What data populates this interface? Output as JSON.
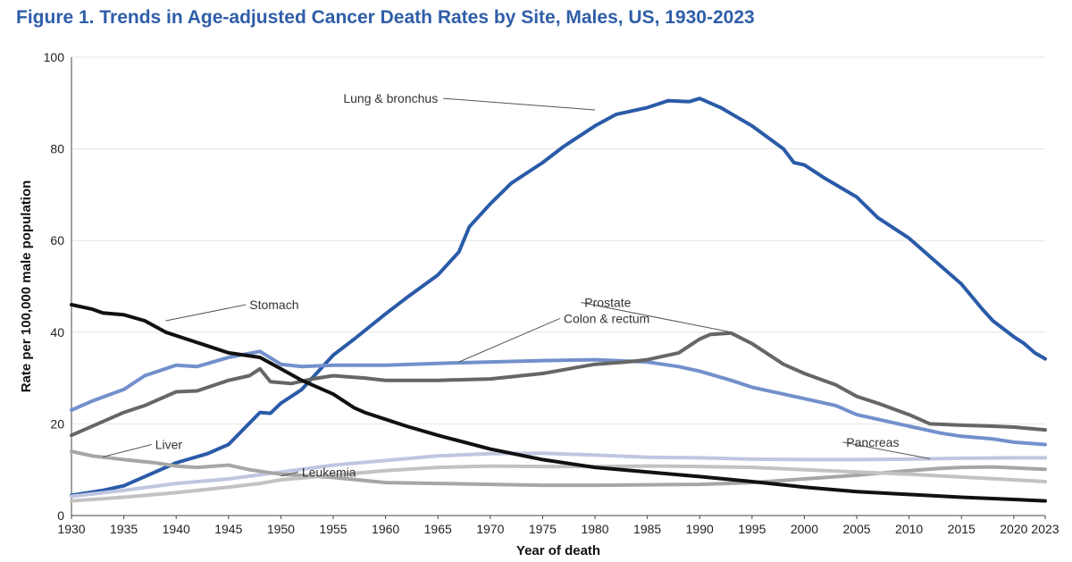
{
  "title": "Figure 1. Trends in Age-adjusted Cancer Death Rates by Site, Males, US, 1930-2023",
  "chart_data": {
    "type": "line",
    "xlabel": "Year of death",
    "ylabel": "Rate per 100,000 male population",
    "xlim": [
      1930,
      2023
    ],
    "ylim": [
      0,
      100
    ],
    "xticks": [
      1930,
      1935,
      1940,
      1945,
      1950,
      1955,
      1960,
      1965,
      1970,
      1975,
      1980,
      1985,
      1990,
      1995,
      2000,
      2005,
      2010,
      2015,
      2020,
      2023
    ],
    "yticks": [
      0,
      20,
      40,
      60,
      80,
      100
    ],
    "grid": "horizontal",
    "series": [
      {
        "name": "Lung & bronchus",
        "color": "#2a5ba8",
        "width": 4,
        "points": [
          [
            1930,
            4.4
          ],
          [
            1933,
            5.5
          ],
          [
            1935,
            6.5
          ],
          [
            1937,
            8.5
          ],
          [
            1940,
            11.5
          ],
          [
            1943,
            13.5
          ],
          [
            1945,
            15.5
          ],
          [
            1948,
            22.5
          ],
          [
            1949,
            22.3
          ],
          [
            1950,
            24.5
          ],
          [
            1952,
            27.5
          ],
          [
            1955,
            35
          ],
          [
            1957,
            38.5
          ],
          [
            1960,
            44
          ],
          [
            1962,
            47.5
          ],
          [
            1965,
            52.5
          ],
          [
            1967,
            57.5
          ],
          [
            1968,
            63
          ],
          [
            1970,
            68
          ],
          [
            1972,
            72.5
          ],
          [
            1975,
            77
          ],
          [
            1977,
            80.5
          ],
          [
            1980,
            85
          ],
          [
            1982,
            87.5
          ],
          [
            1985,
            89
          ],
          [
            1987,
            90.5
          ],
          [
            1989,
            90.3
          ],
          [
            1990,
            91
          ],
          [
            1992,
            89
          ],
          [
            1995,
            85
          ],
          [
            1998,
            80
          ],
          [
            1999,
            77
          ],
          [
            2000,
            76.5
          ],
          [
            2002,
            73.5
          ],
          [
            2005,
            69.5
          ],
          [
            2007,
            65
          ],
          [
            2009,
            62
          ],
          [
            2010,
            60.5
          ],
          [
            2012,
            56.5
          ],
          [
            2015,
            50.5
          ],
          [
            2017,
            45
          ],
          [
            2018,
            42.5
          ],
          [
            2020,
            39
          ],
          [
            2021,
            37.5
          ],
          [
            2022,
            35.5
          ],
          [
            2023,
            34.2
          ]
        ]
      },
      {
        "name": "Colon & rectum",
        "color": "#7290cc",
        "width": 4,
        "points": [
          [
            1930,
            23
          ],
          [
            1932,
            25
          ],
          [
            1935,
            27.5
          ],
          [
            1937,
            30.5
          ],
          [
            1940,
            32.8
          ],
          [
            1942,
            32.5
          ],
          [
            1945,
            34.5
          ],
          [
            1948,
            35.8
          ],
          [
            1950,
            33
          ],
          [
            1952,
            32.5
          ],
          [
            1955,
            32.8
          ],
          [
            1958,
            32.8
          ],
          [
            1960,
            32.8
          ],
          [
            1965,
            33.2
          ],
          [
            1970,
            33.5
          ],
          [
            1975,
            33.8
          ],
          [
            1980,
            34
          ],
          [
            1985,
            33.5
          ],
          [
            1988,
            32.5
          ],
          [
            1990,
            31.5
          ],
          [
            1993,
            29.5
          ],
          [
            1995,
            28
          ],
          [
            1998,
            26.5
          ],
          [
            2000,
            25.5
          ],
          [
            2003,
            24
          ],
          [
            2005,
            22
          ],
          [
            2008,
            20.5
          ],
          [
            2010,
            19.5
          ],
          [
            2013,
            18
          ],
          [
            2015,
            17.3
          ],
          [
            2018,
            16.7
          ],
          [
            2020,
            16
          ],
          [
            2023,
            15.5
          ]
        ]
      },
      {
        "name": "Prostate",
        "color": "#666666",
        "width": 4,
        "points": [
          [
            1930,
            17.5
          ],
          [
            1933,
            20.5
          ],
          [
            1935,
            22.5
          ],
          [
            1937,
            24
          ],
          [
            1940,
            27
          ],
          [
            1942,
            27.2
          ],
          [
            1945,
            29.5
          ],
          [
            1947,
            30.5
          ],
          [
            1948,
            32
          ],
          [
            1949,
            29.2
          ],
          [
            1951,
            28.8
          ],
          [
            1953,
            29.8
          ],
          [
            1955,
            30.5
          ],
          [
            1958,
            30
          ],
          [
            1960,
            29.5
          ],
          [
            1965,
            29.5
          ],
          [
            1970,
            29.8
          ],
          [
            1975,
            31
          ],
          [
            1980,
            33
          ],
          [
            1983,
            33.5
          ],
          [
            1985,
            34
          ],
          [
            1988,
            35.5
          ],
          [
            1990,
            38.5
          ],
          [
            1991,
            39.5
          ],
          [
            1993,
            39.8
          ],
          [
            1995,
            37.5
          ],
          [
            1998,
            33
          ],
          [
            2000,
            31
          ],
          [
            2003,
            28.5
          ],
          [
            2005,
            26
          ],
          [
            2007,
            24.5
          ],
          [
            2010,
            22
          ],
          [
            2012,
            20
          ],
          [
            2015,
            19.7
          ],
          [
            2018,
            19.5
          ],
          [
            2020,
            19.3
          ],
          [
            2023,
            18.7
          ]
        ]
      },
      {
        "name": "Pancreas",
        "color": "#c0c6e0",
        "width": 4,
        "points": [
          [
            1930,
            4.2
          ],
          [
            1935,
            5.5
          ],
          [
            1940,
            7
          ],
          [
            1945,
            8
          ],
          [
            1950,
            9.5
          ],
          [
            1955,
            11
          ],
          [
            1960,
            12
          ],
          [
            1965,
            13
          ],
          [
            1970,
            13.5
          ],
          [
            1975,
            13.6
          ],
          [
            1980,
            13.2
          ],
          [
            1985,
            12.7
          ],
          [
            1990,
            12.6
          ],
          [
            1995,
            12.3
          ],
          [
            2000,
            12.2
          ],
          [
            2005,
            12.2
          ],
          [
            2010,
            12.3
          ],
          [
            2015,
            12.5
          ],
          [
            2020,
            12.6
          ],
          [
            2023,
            12.6
          ]
        ]
      },
      {
        "name": "Liver",
        "color": "#a6a6a6",
        "width": 4,
        "points": [
          [
            1930,
            14
          ],
          [
            1932,
            13
          ],
          [
            1935,
            12.2
          ],
          [
            1938,
            11.5
          ],
          [
            1940,
            10.8
          ],
          [
            1942,
            10.5
          ],
          [
            1945,
            11
          ],
          [
            1947,
            10
          ],
          [
            1950,
            9
          ],
          [
            1955,
            8.3
          ],
          [
            1960,
            7.2
          ],
          [
            1965,
            7
          ],
          [
            1970,
            6.8
          ],
          [
            1975,
            6.6
          ],
          [
            1980,
            6.6
          ],
          [
            1985,
            6.7
          ],
          [
            1990,
            6.8
          ],
          [
            1995,
            7.2
          ],
          [
            2000,
            8
          ],
          [
            2005,
            8.8
          ],
          [
            2010,
            9.8
          ],
          [
            2013,
            10.3
          ],
          [
            2015,
            10.5
          ],
          [
            2018,
            10.6
          ],
          [
            2020,
            10.4
          ],
          [
            2023,
            10.1
          ]
        ]
      },
      {
        "name": "Leukemia",
        "color": "#c2c2c2",
        "width": 4,
        "points": [
          [
            1930,
            3.2
          ],
          [
            1935,
            4
          ],
          [
            1940,
            5
          ],
          [
            1945,
            6.2
          ],
          [
            1948,
            7
          ],
          [
            1950,
            7.8
          ],
          [
            1955,
            8.8
          ],
          [
            1960,
            9.8
          ],
          [
            1965,
            10.5
          ],
          [
            1970,
            10.8
          ],
          [
            1975,
            10.7
          ],
          [
            1980,
            10.7
          ],
          [
            1985,
            10.8
          ],
          [
            1990,
            10.7
          ],
          [
            1995,
            10.5
          ],
          [
            2000,
            10
          ],
          [
            2005,
            9.5
          ],
          [
            2010,
            9.0
          ],
          [
            2015,
            8.4
          ],
          [
            2020,
            7.8
          ],
          [
            2023,
            7.4
          ]
        ]
      },
      {
        "name": "Stomach",
        "color": "#111111",
        "width": 4,
        "points": [
          [
            1930,
            46
          ],
          [
            1932,
            45
          ],
          [
            1933,
            44.2
          ],
          [
            1935,
            43.8
          ],
          [
            1937,
            42.5
          ],
          [
            1939,
            40
          ],
          [
            1941,
            38.5
          ],
          [
            1943,
            37
          ],
          [
            1945,
            35.5
          ],
          [
            1948,
            34.5
          ],
          [
            1950,
            32
          ],
          [
            1952,
            29.5
          ],
          [
            1955,
            26.5
          ],
          [
            1957,
            23.5
          ],
          [
            1958,
            22.5
          ],
          [
            1960,
            21
          ],
          [
            1962,
            19.5
          ],
          [
            1965,
            17.5
          ],
          [
            1970,
            14.5
          ],
          [
            1975,
            12.2
          ],
          [
            1980,
            10.5
          ],
          [
            1985,
            9.5
          ],
          [
            1990,
            8.5
          ],
          [
            1995,
            7.4
          ],
          [
            2000,
            6.2
          ],
          [
            2005,
            5.2
          ],
          [
            2010,
            4.6
          ],
          [
            2015,
            4.0
          ],
          [
            2020,
            3.5
          ],
          [
            2023,
            3.2
          ]
        ]
      }
    ],
    "labels": [
      {
        "text": "Lung & bronchus",
        "anchor": [
          1980,
          88.5
        ],
        "at": [
          1965,
          91
        ],
        "align": "end"
      },
      {
        "text": "Stomach",
        "anchor": [
          1939,
          42.5
        ],
        "at": [
          1947,
          46
        ],
        "align": "start"
      },
      {
        "text": "Colon & rectum",
        "anchor": [
          1967,
          33.5
        ],
        "at": [
          1977,
          43
        ],
        "align": "start"
      },
      {
        "text": "Prostate",
        "anchor": [
          1993,
          40
        ],
        "at": [
          1979,
          46.5
        ],
        "align": "start"
      },
      {
        "text": "Liver",
        "anchor": [
          1933,
          12.8
        ],
        "at": [
          1938,
          15.5
        ],
        "align": "start"
      },
      {
        "text": "Pancreas",
        "anchor": [
          2012,
          12.4
        ],
        "at": [
          2004,
          16
        ],
        "align": "start"
      },
      {
        "text": "Leukemia",
        "anchor": [
          1950,
          8.6
        ],
        "at": [
          1952,
          9.5
        ],
        "align": "start"
      }
    ]
  }
}
